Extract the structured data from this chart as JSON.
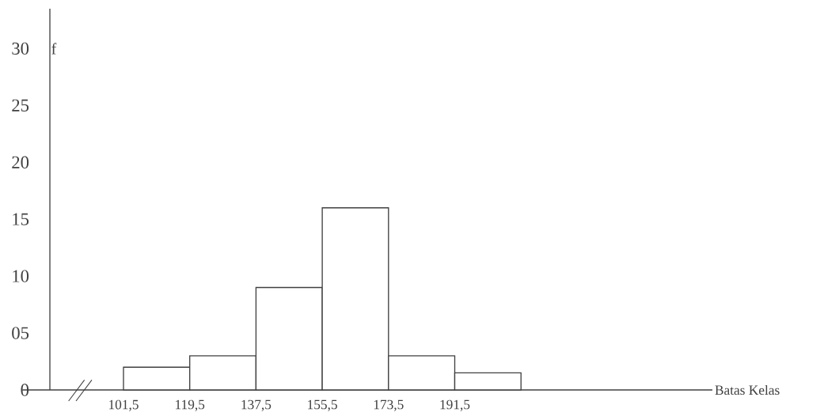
{
  "chart_data": {
    "type": "histogram",
    "xlabel": "Batas Kelas",
    "ylabel": "f",
    "bins": [
      101.5,
      119.5,
      137.5,
      155.5,
      173.5,
      191.5,
      209.5
    ],
    "values": [
      2,
      3,
      9,
      16,
      3,
      1.5
    ],
    "color": "#ffffff",
    "xlim": [
      81.5,
      261.5
    ],
    "ylim": [
      0,
      33.5
    ],
    "xticks": [
      {
        "value": 101.5,
        "label": "101,5"
      },
      {
        "value": 119.5,
        "label": "119,5"
      },
      {
        "value": 137.5,
        "label": "137,5"
      },
      {
        "value": 155.5,
        "label": "155,5"
      },
      {
        "value": 173.5,
        "label": "173,5"
      },
      {
        "value": 191.5,
        "label": "191,5"
      }
    ],
    "yticks": [
      0,
      {
        "value": 5,
        "label": "05"
      },
      10,
      15,
      20,
      25,
      30
    ]
  }
}
